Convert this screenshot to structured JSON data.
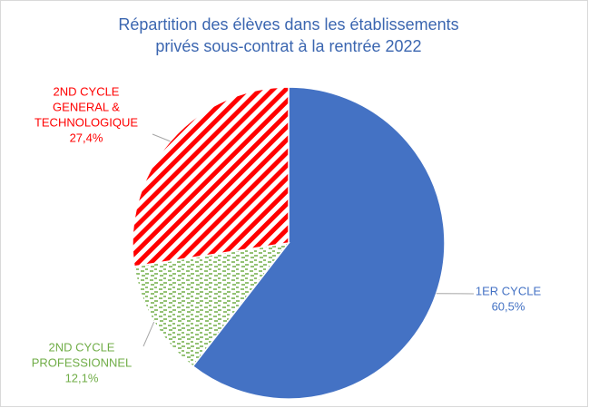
{
  "chart_data": {
    "type": "pie",
    "title": [
      "Répartition des élèves dans les établissements",
      "privés sous-contrat à la rentrée 2022"
    ],
    "categories": [
      [
        "1ER CYCLE"
      ],
      [
        "2ND CYCLE",
        "PROFESSIONNEL"
      ],
      [
        "2ND CYCLE",
        "GENERAL &",
        "TECHNOLOGIQUE"
      ]
    ],
    "values": [
      60.5,
      12.1,
      27.4
    ],
    "value_labels": [
      "60,5%",
      "12,1%",
      "27,4%"
    ],
    "colors": [
      "#4472c4",
      "#70ad47",
      "#ff0000"
    ],
    "patterns": [
      "solid",
      "dashes",
      "stripes"
    ]
  }
}
